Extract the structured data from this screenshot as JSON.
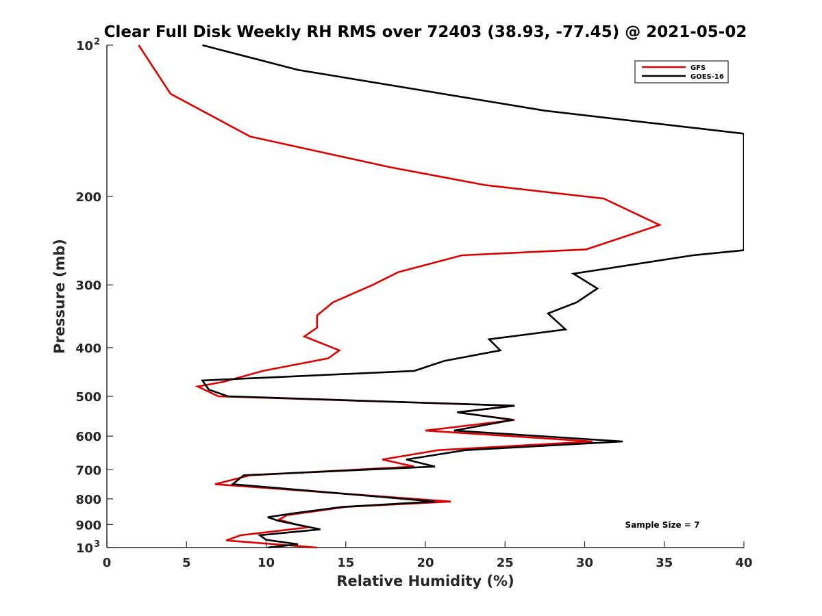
{
  "chart_data": {
    "type": "line",
    "title": "Clear Full Disk Weekly RH RMS over 72403 (38.93, -77.45) @ 2021-05-02",
    "xlabel": "Relative Humidity (%)",
    "ylabel": "Pressure (mb)",
    "xlim": [
      0,
      40
    ],
    "ylim": [
      100,
      1000
    ],
    "y_scale": "log",
    "y_reversed": true,
    "grid": false,
    "legend_position": "top-right",
    "x_ticks": [
      "0",
      "5",
      "10",
      "15",
      "20",
      "25",
      "30",
      "35",
      "40"
    ],
    "y_ticks": [
      {
        "value": 100,
        "base": "10",
        "exp": "2"
      },
      {
        "value": 200,
        "label": "200"
      },
      {
        "value": 300,
        "label": "300"
      },
      {
        "value": 400,
        "label": "400"
      },
      {
        "value": 500,
        "label": "500"
      },
      {
        "value": 600,
        "label": "600"
      },
      {
        "value": 700,
        "label": "700"
      },
      {
        "value": 800,
        "label": "800"
      },
      {
        "value": 900,
        "label": "900"
      },
      {
        "value": 1000,
        "base": "10",
        "exp": "3"
      }
    ],
    "series": [
      {
        "name": "GFS",
        "color": "#dd0000",
        "points": [
          [
            2.0,
            100
          ],
          [
            4.0,
            125
          ],
          [
            9.0,
            152
          ],
          [
            17.8,
            175
          ],
          [
            23.8,
            190
          ],
          [
            31.2,
            202
          ],
          [
            34.7,
            228
          ],
          [
            30.1,
            255
          ],
          [
            22.3,
            262
          ],
          [
            18.3,
            283
          ],
          [
            16.7,
            300
          ],
          [
            14.2,
            325
          ],
          [
            13.2,
            345
          ],
          [
            13.2,
            365
          ],
          [
            12.4,
            380
          ],
          [
            14.6,
            405
          ],
          [
            13.9,
            420
          ],
          [
            9.8,
            445
          ],
          [
            7.3,
            468
          ],
          [
            5.7,
            478
          ],
          [
            7.0,
            500
          ],
          [
            25.6,
            522
          ],
          [
            22.0,
            538
          ],
          [
            25.6,
            557
          ],
          [
            20.0,
            585
          ],
          [
            30.5,
            615
          ],
          [
            20.8,
            640
          ],
          [
            17.3,
            668
          ],
          [
            19.3,
            690
          ],
          [
            9.0,
            718
          ],
          [
            6.8,
            748
          ],
          [
            21.6,
            810
          ],
          [
            15.0,
            830
          ],
          [
            11.3,
            862
          ],
          [
            10.8,
            880
          ],
          [
            12.6,
            912
          ],
          [
            8.4,
            945
          ],
          [
            7.5,
            968
          ],
          [
            13.2,
            1000
          ]
        ]
      },
      {
        "name": "GOES-16",
        "color": "#000000",
        "points": [
          [
            6.0,
            100
          ],
          [
            12.0,
            112
          ],
          [
            27.5,
            135
          ],
          [
            40.0,
            150
          ],
          [
            40.0,
            256
          ],
          [
            36.8,
            262
          ],
          [
            29.3,
            285
          ],
          [
            30.8,
            305
          ],
          [
            29.5,
            325
          ],
          [
            27.7,
            342
          ],
          [
            28.8,
            368
          ],
          [
            24.0,
            385
          ],
          [
            24.7,
            405
          ],
          [
            21.2,
            425
          ],
          [
            19.3,
            445
          ],
          [
            6.0,
            465
          ],
          [
            6.4,
            485
          ],
          [
            7.6,
            500
          ],
          [
            25.6,
            522
          ],
          [
            22.0,
            538
          ],
          [
            25.5,
            557
          ],
          [
            21.8,
            585
          ],
          [
            32.4,
            615
          ],
          [
            22.5,
            640
          ],
          [
            18.8,
            668
          ],
          [
            20.6,
            690
          ],
          [
            8.6,
            718
          ],
          [
            7.9,
            748
          ],
          [
            20.6,
            810
          ],
          [
            14.8,
            830
          ],
          [
            11.7,
            855
          ],
          [
            10.1,
            870
          ],
          [
            10.8,
            885
          ],
          [
            12.3,
            905
          ],
          [
            13.4,
            920
          ],
          [
            9.6,
            945
          ],
          [
            10.0,
            965
          ],
          [
            12.0,
            985
          ],
          [
            10.1,
            1000
          ]
        ]
      }
    ],
    "annotation": "Sample Size = 7"
  }
}
